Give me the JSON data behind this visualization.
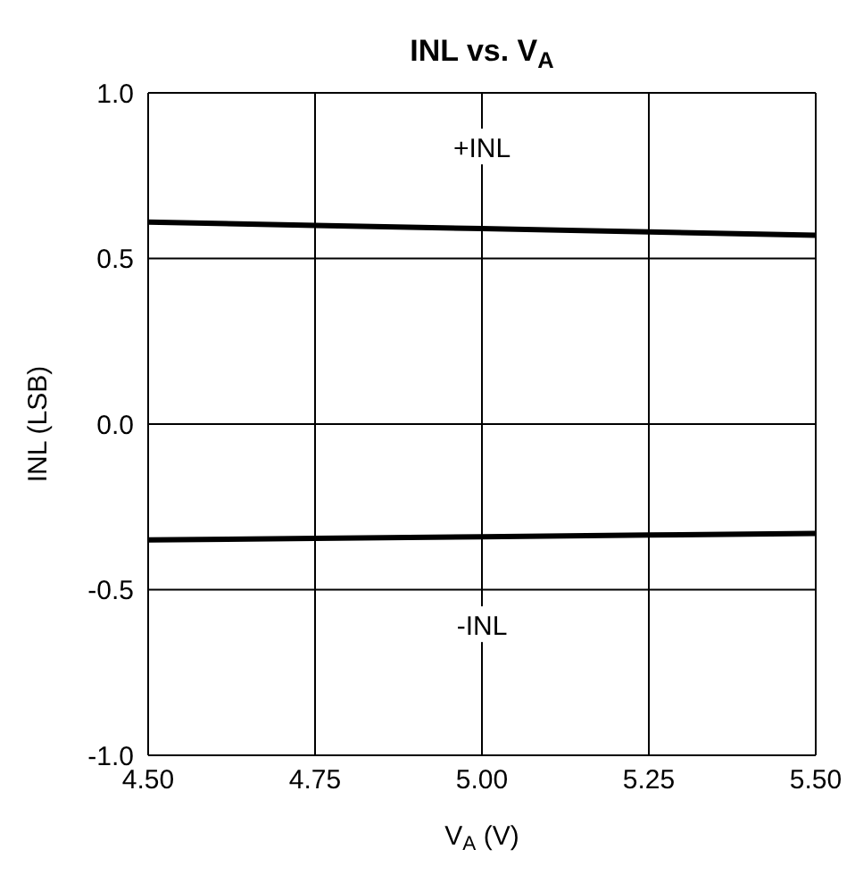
{
  "chart_data": {
    "type": "line",
    "title": "INL vs. V$_{A}$",
    "xlabel": "V$_{A}$ (V)",
    "ylabel": "INL (LSB)",
    "x": [
      4.5,
      4.75,
      5.0,
      5.25,
      5.5
    ],
    "series": [
      {
        "color": "#000000",
        "values": [
          0.61,
          0.6,
          0.59,
          0.58,
          0.57
        ]
      },
      {
        "color": "#000000",
        "values": [
          -0.35,
          -0.345,
          -0.34,
          -0.335,
          -0.33
        ]
      }
    ],
    "xlim": [
      4.5,
      5.5
    ],
    "xticks": [
      {
        "value": 4.5,
        "label": "4.50"
      },
      {
        "value": 4.75,
        "label": "4.75"
      },
      {
        "value": 5.0,
        "label": "5.00"
      },
      {
        "value": 5.25,
        "label": "5.25"
      },
      {
        "value": 5.5,
        "label": "5.50"
      }
    ],
    "ylim": [
      -1.0,
      1.0
    ],
    "yticks": [
      {
        "value": -1.0,
        "label": "-1.0"
      },
      {
        "value": -0.5,
        "label": "-0.5"
      },
      {
        "value": 0.0,
        "label": "0.0"
      },
      {
        "value": 0.5,
        "label": "0.5"
      },
      {
        "value": 1.0,
        "label": "1.0"
      }
    ],
    "grid": true,
    "legend": false,
    "marker": "none",
    "line_style": "solid",
    "annotations": [
      "+INL",
      "-INL"
    ]
  }
}
